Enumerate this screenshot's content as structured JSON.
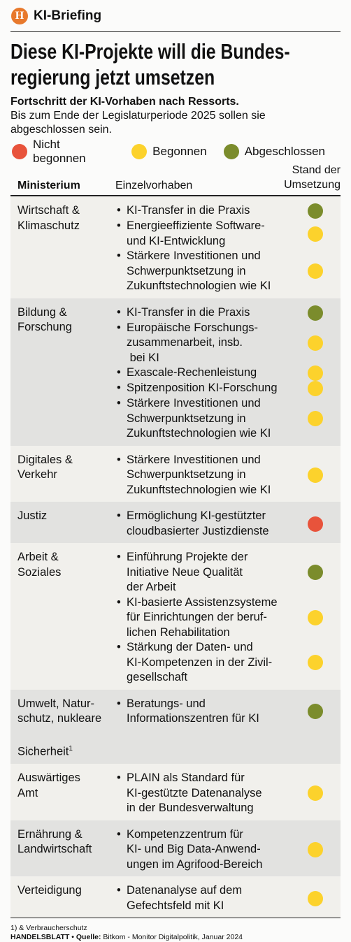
{
  "header": {
    "logo": "H",
    "brand": "KI-Briefing"
  },
  "title": [
    "Diese KI-Projekte will die Bundes-",
    "regierung jetzt umsetzen"
  ],
  "subtitle": "Fortschritt der KI-Vorhaben nach Ressorts.",
  "description": [
    "Bis zum Ende der Legislaturperiode 2025 sollen sie",
    "abgeschlossen sein."
  ],
  "legend": [
    {
      "label": "Nicht begonnen",
      "color": "#e8533b"
    },
    {
      "label": "Begonnen",
      "color": "#fcd22c"
    },
    {
      "label": "Abgeschlossen",
      "color": "#7b8c2c"
    }
  ],
  "table": {
    "headers": {
      "ministry": "Ministerium",
      "project": "Einzelvorhaben",
      "status": [
        "Stand der",
        "Umsetzung"
      ]
    },
    "rows": [
      {
        "ministry": [
          "Wirtschaft &",
          "Klimaschutz"
        ],
        "items": [
          {
            "lines": [
              "KI-Transfer in die Praxis"
            ],
            "color": "#7b8c2c"
          },
          {
            "lines": [
              "Energieeffiziente Software-",
              "und KI-Entwicklung"
            ],
            "color": "#fcd22c"
          },
          {
            "lines": [
              "Stärkere Investitionen und",
              "Schwerpunktsetzung in",
              "Zukunftstechnologien wie KI"
            ],
            "color": "#fcd22c"
          }
        ]
      },
      {
        "ministry": [
          "Bildung &",
          "Forschung"
        ],
        "items": [
          {
            "lines": [
              "KI-Transfer in die Praxis"
            ],
            "color": "#7b8c2c"
          },
          {
            "lines": [
              "Europäische Forschungs-",
              "zusammenarbeit, insb.",
              " bei KI"
            ],
            "color": "#fcd22c"
          },
          {
            "lines": [
              "Exascale-Rechenleistung"
            ],
            "color": "#fcd22c"
          },
          {
            "lines": [
              "Spitzenposition KI-Forschung"
            ],
            "color": "#fcd22c"
          },
          {
            "lines": [
              "Stärkere Investitionen und",
              "Schwerpunktsetzung in",
              "Zukunftstechnologien wie KI"
            ],
            "color": "#fcd22c"
          }
        ]
      },
      {
        "ministry": [
          "Digitales &",
          "Verkehr"
        ],
        "items": [
          {
            "lines": [
              "Stärkere Investitionen und",
              "Schwerpunktsetzung in",
              "Zukunftstechnologien wie KI"
            ],
            "color": "#fcd22c"
          }
        ]
      },
      {
        "ministry": [
          "Justiz"
        ],
        "items": [
          {
            "lines": [
              "Ermöglichung KI-gestützter",
              "cloudbasierter Justizdienste"
            ],
            "color": "#e8533b"
          }
        ]
      },
      {
        "ministry": [
          "Arbeit &",
          "Soziales"
        ],
        "items": [
          {
            "lines": [
              "Einführung Projekte der",
              "Initiative Neue Qualität",
              "der Arbeit"
            ],
            "color": "#7b8c2c"
          },
          {
            "lines": [
              "KI-basierte Assistenzsysteme",
              "für Einrichtungen der beruf-",
              "lichen Rehabilitation"
            ],
            "color": "#fcd22c"
          },
          {
            "lines": [
              "Stärkung der Daten- und",
              "KI-Kompetenzen in der Zivil-",
              "gesellschaft"
            ],
            "color": "#fcd22c"
          }
        ]
      },
      {
        "ministry": [
          "Umwelt, Natur-",
          "schutz, nukleare",
          "Sicherheit"
        ],
        "footnote_mark": "1",
        "items": [
          {
            "lines": [
              "Beratungs- und",
              "Informationszentren für KI"
            ],
            "color": "#7b8c2c"
          }
        ]
      },
      {
        "ministry": [
          "Auswärtiges",
          "Amt"
        ],
        "items": [
          {
            "lines": [
              "PLAIN als Standard für",
              "KI-gestützte Datenanalyse",
              "in der Bundesverwaltung"
            ],
            "color": "#fcd22c"
          }
        ]
      },
      {
        "ministry": [
          "Ernährung &",
          "Landwirtschaft"
        ],
        "items": [
          {
            "lines": [
              "Kompetenzzentrum für",
              "KI- und Big Data-Anwend-",
              "ungen im Agrifood-Bereich"
            ],
            "color": "#fcd22c"
          }
        ]
      },
      {
        "ministry": [
          "Verteidigung"
        ],
        "items": [
          {
            "lines": [
              "Datenanalyse auf dem",
              "Gefechtsfeld mit KI"
            ],
            "color": "#fcd22c"
          }
        ]
      }
    ]
  },
  "footer": {
    "footnote": "1) & Verbraucherschutz",
    "source_label": "HANDELSBLATT • Quelle:",
    "source": "Bitkom - Monitor Digitalpolitik, Januar 2024"
  }
}
